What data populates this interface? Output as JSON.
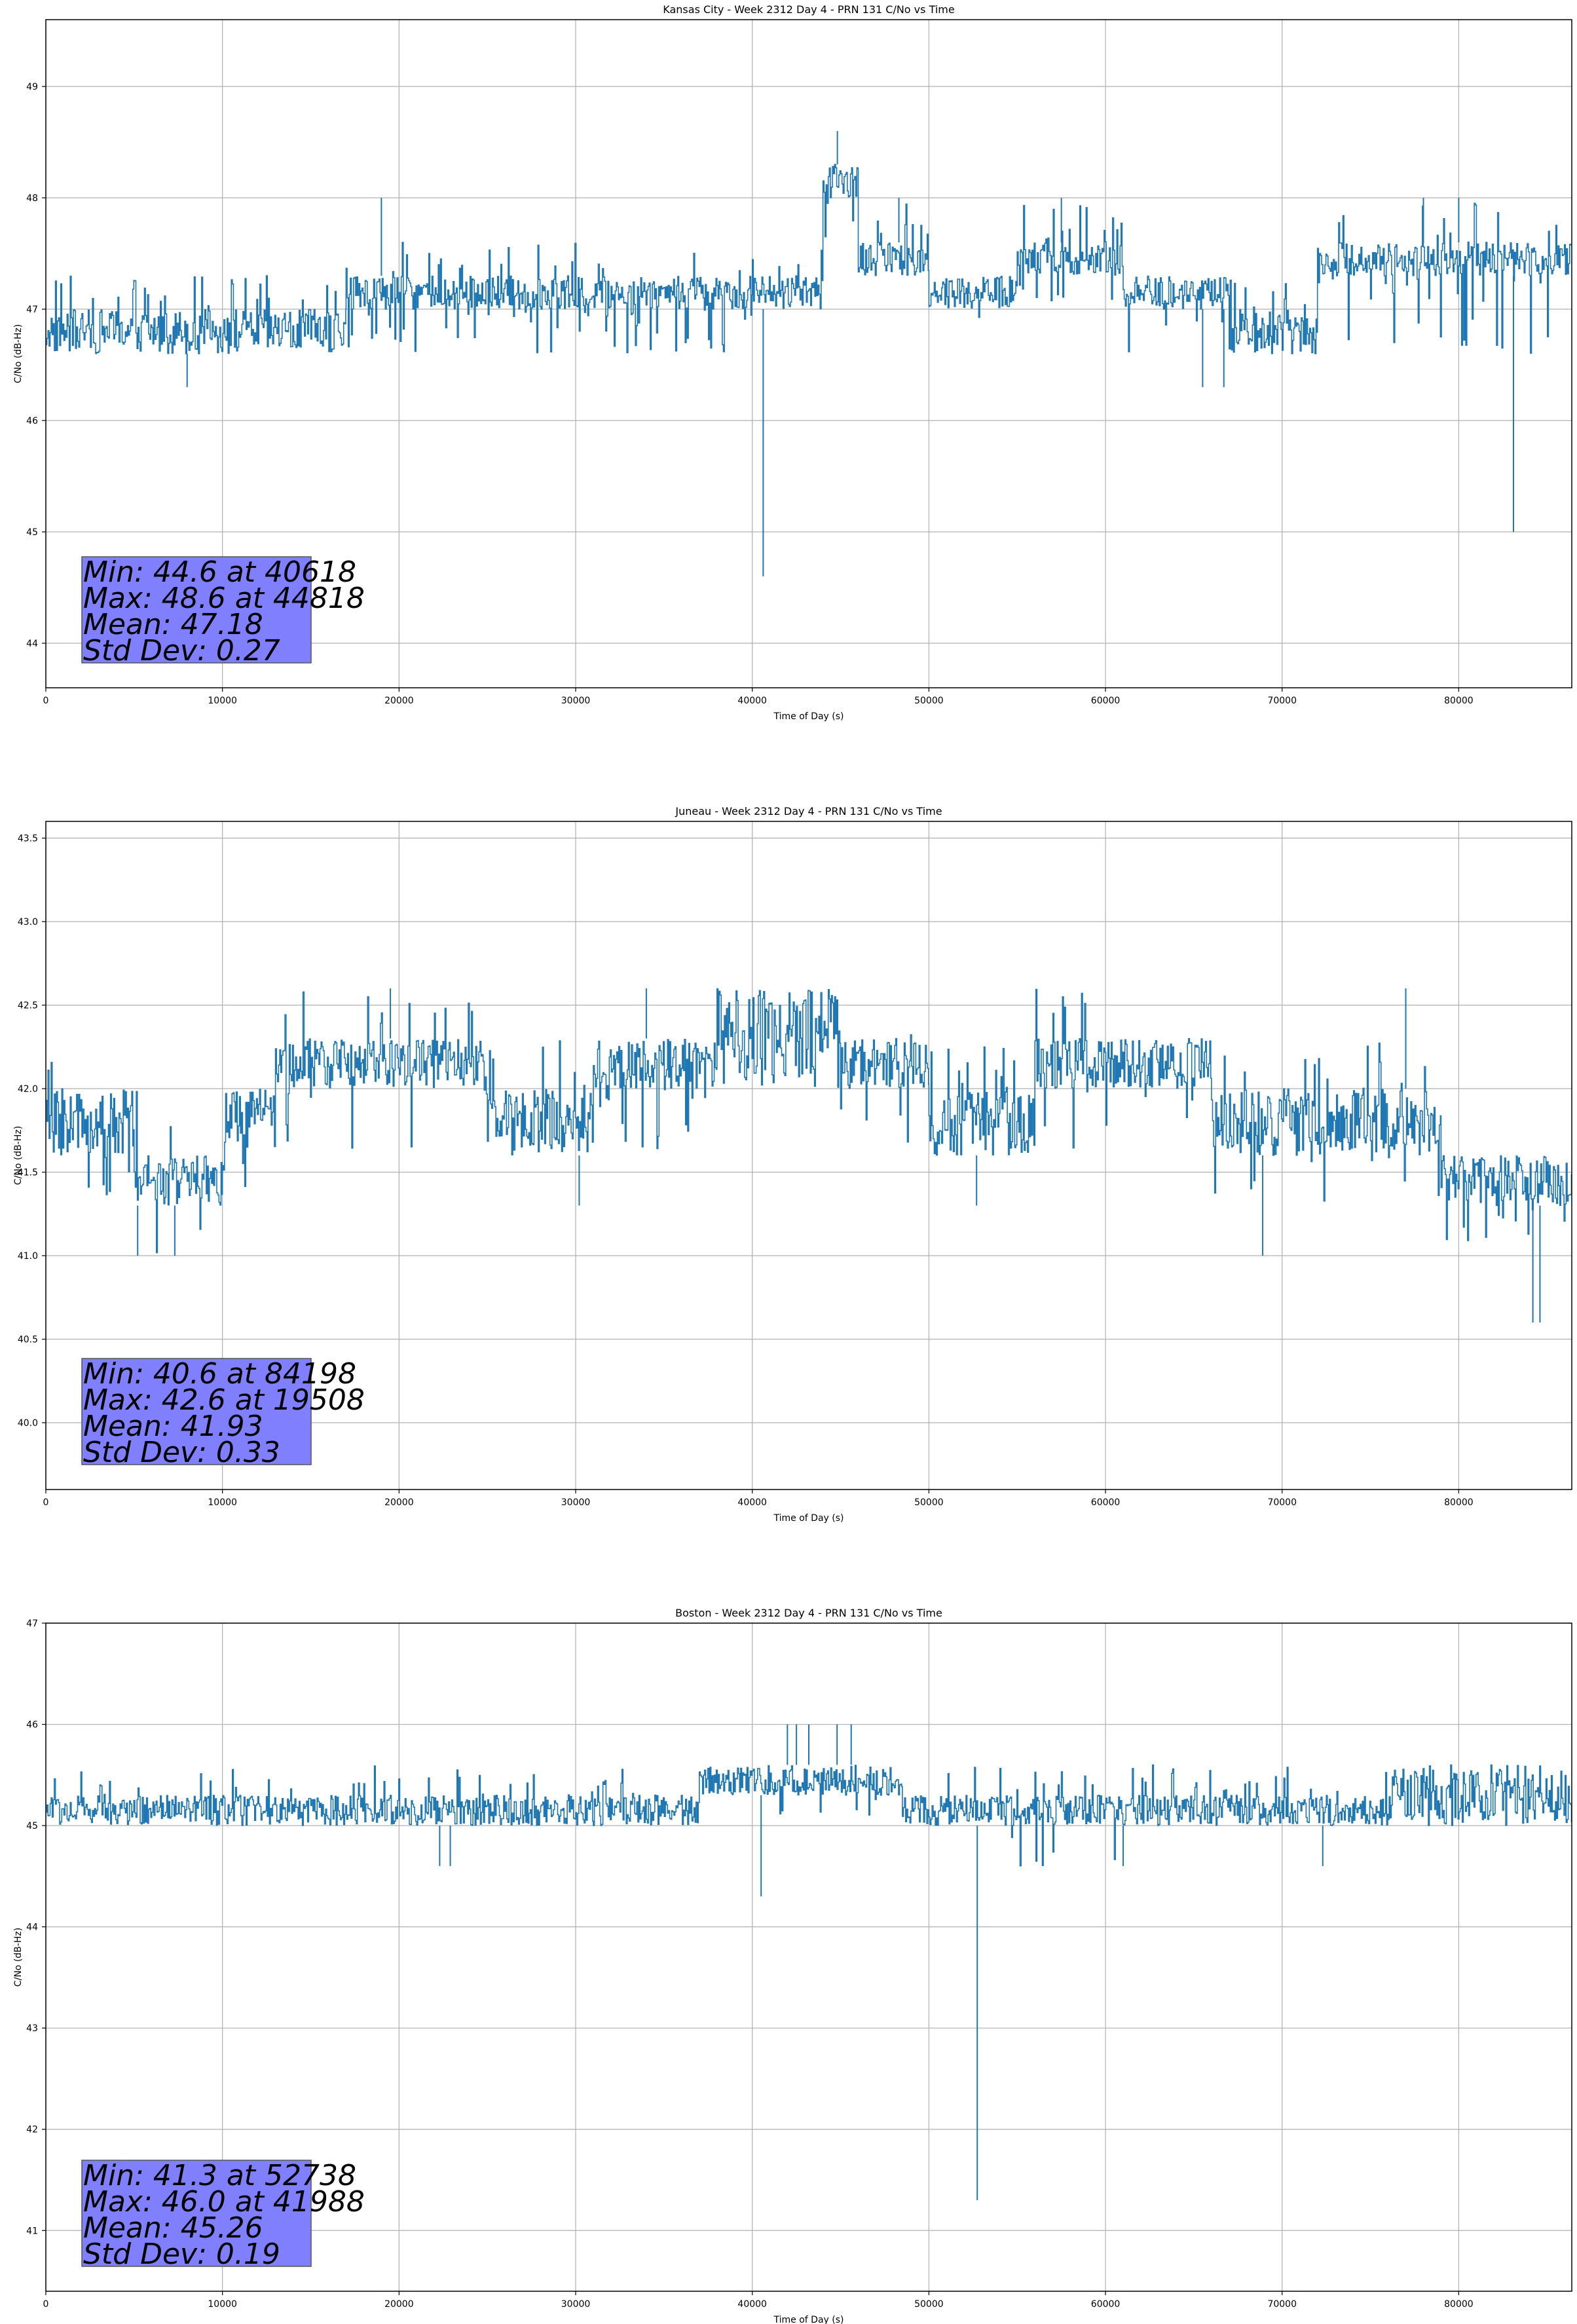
{
  "colors": {
    "line": "#1f77b4",
    "grid": "#b0b0b0",
    "stats_box_fill": "#8080ff",
    "stats_box_edge": "#555555"
  },
  "chart_data": [
    {
      "type": "line",
      "title": "Kansas City - Week 2312 Day 4 - PRN 131 C/No vs Time",
      "xlabel": "Time of Day (s)",
      "ylabel": "C/No (dB-Hz)",
      "xlim": [
        0,
        86400
      ],
      "ylim": [
        43.6,
        49.6
      ],
      "xticks": [
        0,
        10000,
        20000,
        30000,
        40000,
        50000,
        60000,
        70000,
        80000
      ],
      "yticks": [
        44,
        45,
        46,
        47,
        48,
        49
      ],
      "grid": true,
      "series": [
        {
          "segments": [
            {
              "start": 0,
              "end": 17000,
              "low": 46.6,
              "high": 47.3,
              "dense_low": 46.6,
              "dense_high": 47.0,
              "density": 0.8
            },
            {
              "start": 17000,
              "end": 40000,
              "low": 46.6,
              "high": 47.6,
              "dense_low": 47.0,
              "dense_high": 47.3,
              "density": 0.7
            },
            {
              "start": 40000,
              "end": 44000,
              "low": 47.0,
              "high": 47.6,
              "dense_low": 47.0,
              "dense_high": 47.3,
              "density": 0.9
            },
            {
              "start": 44000,
              "end": 46000,
              "low": 47.3,
              "high": 48.3,
              "dense_low": 48.0,
              "dense_high": 48.3,
              "density": 0.9
            },
            {
              "start": 46000,
              "end": 50000,
              "low": 47.3,
              "high": 48.0,
              "dense_low": 47.3,
              "dense_high": 47.6,
              "density": 0.8
            },
            {
              "start": 50000,
              "end": 55000,
              "low": 46.6,
              "high": 47.3,
              "dense_low": 47.0,
              "dense_high": 47.3,
              "density": 0.9
            },
            {
              "start": 55000,
              "end": 61000,
              "low": 47.0,
              "high": 48.0,
              "dense_low": 47.3,
              "dense_high": 47.6,
              "density": 0.8
            },
            {
              "start": 61000,
              "end": 67000,
              "low": 46.6,
              "high": 47.3,
              "dense_low": 47.0,
              "dense_high": 47.3,
              "density": 0.9
            },
            {
              "start": 67000,
              "end": 72000,
              "low": 46.6,
              "high": 47.3,
              "dense_low": 46.6,
              "dense_high": 47.0,
              "density": 0.8
            },
            {
              "start": 72000,
              "end": 86400,
              "low": 46.6,
              "high": 48.0,
              "dense_low": 47.3,
              "dense_high": 47.6,
              "density": 0.8
            }
          ],
          "spikes": [
            [
              40618,
              44.6
            ],
            [
              44818,
              48.6
            ],
            [
              83100,
              45.0
            ],
            [
              8000,
              46.3
            ],
            [
              65500,
              46.3
            ],
            [
              66700,
              46.3
            ],
            [
              45000,
              48.3
            ],
            [
              19000,
              48.0
            ],
            [
              48300,
              48.0
            ],
            [
              57500,
              48.0
            ],
            [
              78000,
              48.0
            ],
            [
              80000,
              48.0
            ]
          ]
        }
      ],
      "stats": {
        "lines": [
          "Min: 44.6 at 40618",
          "Max: 48.6 at 44818",
          "Mean: 47.18",
          "Std Dev: 0.27"
        ]
      }
    },
    {
      "type": "line",
      "title": "Juneau - Week 2312 Day 4 - PRN 131 C/No vs Time",
      "xlabel": "Time of Day (s)",
      "ylabel": "C/No (dB-Hz)",
      "xlim": [
        0,
        86400
      ],
      "ylim": [
        39.6,
        43.6
      ],
      "xticks": [
        0,
        10000,
        20000,
        30000,
        40000,
        50000,
        60000,
        70000,
        80000
      ],
      "yticks": [
        40.0,
        40.5,
        41.0,
        41.5,
        42.0,
        42.5,
        43.0,
        43.5
      ],
      "ytick_labels": [
        "40.0",
        "40.5",
        "41.0",
        "41.5",
        "42.0",
        "42.5",
        "43.0",
        "43.5"
      ],
      "grid": true,
      "series": [
        {
          "segments": [
            {
              "start": 0,
              "end": 1500,
              "low": 41.3,
              "high": 42.3,
              "dense_low": 41.6,
              "dense_high": 42.0,
              "density": 0.9
            },
            {
              "start": 1500,
              "end": 5000,
              "low": 41.3,
              "high": 42.0,
              "dense_low": 41.6,
              "dense_high": 42.0,
              "density": 0.8
            },
            {
              "start": 5000,
              "end": 10000,
              "low": 41.0,
              "high": 42.0,
              "dense_low": 41.3,
              "dense_high": 41.6,
              "density": 0.9
            },
            {
              "start": 10000,
              "end": 13000,
              "low": 41.3,
              "high": 42.0,
              "dense_low": 41.6,
              "dense_high": 42.0,
              "density": 0.9
            },
            {
              "start": 13000,
              "end": 25000,
              "low": 41.6,
              "high": 42.6,
              "dense_low": 42.0,
              "dense_high": 42.3,
              "density": 0.85
            },
            {
              "start": 25000,
              "end": 31000,
              "low": 41.6,
              "high": 42.3,
              "dense_low": 41.6,
              "dense_high": 42.0,
              "density": 0.8
            },
            {
              "start": 31000,
              "end": 38000,
              "low": 41.6,
              "high": 42.3,
              "dense_low": 42.0,
              "dense_high": 42.3,
              "density": 0.8
            },
            {
              "start": 38000,
              "end": 45000,
              "low": 42.0,
              "high": 42.6,
              "dense_low": 42.0,
              "dense_high": 42.6,
              "density": 0.85
            },
            {
              "start": 45000,
              "end": 50000,
              "low": 41.6,
              "high": 42.6,
              "dense_low": 42.0,
              "dense_high": 42.3,
              "density": 0.8
            },
            {
              "start": 50000,
              "end": 56000,
              "low": 41.6,
              "high": 42.3,
              "dense_low": 41.6,
              "dense_high": 42.0,
              "density": 0.8
            },
            {
              "start": 56000,
              "end": 66000,
              "low": 41.6,
              "high": 42.6,
              "dense_low": 42.0,
              "dense_high": 42.3,
              "density": 0.85
            },
            {
              "start": 66000,
              "end": 79000,
              "low": 41.3,
              "high": 42.3,
              "dense_low": 41.6,
              "dense_high": 42.0,
              "density": 0.85
            },
            {
              "start": 79000,
              "end": 86400,
              "low": 41.0,
              "high": 41.6,
              "dense_low": 41.3,
              "dense_high": 41.6,
              "density": 0.85
            }
          ],
          "spikes": [
            [
              84198,
              40.6
            ],
            [
              84600,
              40.6
            ],
            [
              19508,
              42.6
            ],
            [
              5200,
              41.0
            ],
            [
              7300,
              41.0
            ],
            [
              30200,
              41.3
            ],
            [
              52700,
              41.3
            ],
            [
              68900,
              41.0
            ],
            [
              77000,
              42.6
            ],
            [
              34000,
              42.6
            ]
          ]
        }
      ],
      "stats": {
        "lines": [
          "Min: 40.6 at 84198",
          "Max: 42.6 at 19508",
          "Mean: 41.93",
          "Std Dev: 0.33"
        ]
      }
    },
    {
      "type": "line",
      "title": "Boston - Week 2312 Day 4 - PRN 131 C/No vs Time",
      "xlabel": "Time of Day (s)",
      "ylabel": "C/No (dB-Hz)",
      "xlim": [
        0,
        86400
      ],
      "ylim": [
        40.4,
        47.0
      ],
      "xticks": [
        0,
        10000,
        20000,
        30000,
        40000,
        50000,
        60000,
        70000,
        80000
      ],
      "yticks": [
        41,
        42,
        43,
        44,
        45,
        46,
        47
      ],
      "grid": true,
      "series": [
        {
          "segments": [
            {
              "start": 0,
              "end": 31000,
              "low": 45.0,
              "high": 45.6,
              "dense_low": 45.0,
              "dense_high": 45.3,
              "density": 0.9
            },
            {
              "start": 31000,
              "end": 37000,
              "low": 45.0,
              "high": 45.6,
              "dense_low": 45.0,
              "dense_high": 45.3,
              "density": 0.8
            },
            {
              "start": 37000,
              "end": 48500,
              "low": 45.0,
              "high": 45.6,
              "dense_low": 45.3,
              "dense_high": 45.6,
              "density": 0.9
            },
            {
              "start": 48500,
              "end": 54500,
              "low": 45.0,
              "high": 45.6,
              "dense_low": 45.0,
              "dense_high": 45.3,
              "density": 0.85
            },
            {
              "start": 54500,
              "end": 62000,
              "low": 44.6,
              "high": 45.6,
              "dense_low": 45.0,
              "dense_high": 45.3,
              "density": 0.85
            },
            {
              "start": 62000,
              "end": 76000,
              "low": 45.0,
              "high": 45.6,
              "dense_low": 45.0,
              "dense_high": 45.3,
              "density": 0.85
            },
            {
              "start": 76000,
              "end": 86400,
              "low": 45.0,
              "high": 45.6,
              "dense_low": 45.0,
              "dense_high": 45.6,
              "density": 0.85
            }
          ],
          "spikes": [
            [
              52738,
              41.3
            ],
            [
              41988,
              46.0
            ],
            [
              40500,
              44.3
            ],
            [
              22300,
              44.6
            ],
            [
              22900,
              44.6
            ],
            [
              72300,
              44.6
            ],
            [
              61000,
              44.6
            ],
            [
              42500,
              46.0
            ],
            [
              43200,
              46.0
            ],
            [
              44800,
              46.0
            ],
            [
              45600,
              46.0
            ]
          ]
        }
      ],
      "stats": {
        "lines": [
          "Min: 41.3 at 52738",
          "Max: 46.0 at 41988",
          "Mean: 45.26",
          "Std Dev: 0.19"
        ]
      }
    }
  ]
}
